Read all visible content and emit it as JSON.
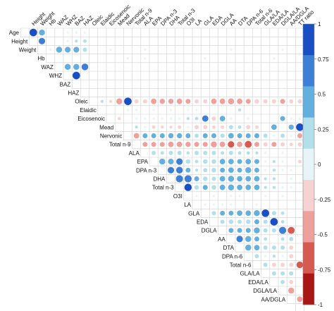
{
  "chart_data": {
    "type": "heatmap",
    "title": "",
    "variables": [
      "Age",
      "Height",
      "Weight",
      "Hb",
      "WAZ",
      "WHZ",
      "BAZ",
      "HAZ",
      "Oleic",
      "Elaidic",
      "Eicosenoic",
      "Mead",
      "Nervonic",
      "Total n-9",
      "ALA",
      "EPA",
      "DPA n-3",
      "DHA",
      "Total n-3",
      "O3I",
      "LA",
      "GLA",
      "EDA",
      "DGLA",
      "AA",
      "DTA",
      "DPA n-6",
      "Total n-6",
      "GLA/LA",
      "EDA/LA",
      "DGLA/LA",
      "AA/DGLA",
      "TT ratio"
    ],
    "row_labels": [
      "Age",
      "Height",
      "Weight",
      "Hb",
      "WAZ",
      "WHZ",
      "BAZ",
      "HAZ",
      "Oleic",
      "Elaidic",
      "Eicosenoic",
      "Mead",
      "Nervonic",
      "Total n-9",
      "ALA",
      "EPA",
      "DPA n-3",
      "DHA",
      "Total n-3",
      "O3I",
      "LA",
      "GLA",
      "EDA",
      "DGLA",
      "AA",
      "DTA",
      "DPA n-6",
      "Total n-6",
      "GLA/LA",
      "EDA/LA",
      "DGLA/LA",
      "AA/DGLA"
    ],
    "col_labels": [
      "Height",
      "Weight",
      "Hb",
      "WAZ",
      "WHZ",
      "BAZ",
      "HAZ",
      "Oleic",
      "Elaidic",
      "Eicosenoic",
      "Mead",
      "Nervonic",
      "Total n-9",
      "ALA",
      "EPA",
      "DPA n-3",
      "DHA",
      "Total n-3",
      "O3I",
      "LA",
      "GLA",
      "EDA",
      "DGLA",
      "AA",
      "DTA",
      "DPA n-6",
      "Total n-6",
      "GLA/LA",
      "EDA/LA",
      "DGLA/LA",
      "AA/DGLA",
      "TT ratio"
    ],
    "value_range": [
      -1,
      1
    ],
    "colorbar": {
      "ticks": [
        "1",
        "0.75",
        "0.5",
        "0.25",
        "0",
        "-0.25",
        "-0.5",
        "-0.75",
        "-1"
      ],
      "colors": [
        "#1a4fc4",
        "#3e7fd6",
        "#63b0de",
        "#b3dfeb",
        "#e8f5f8",
        "#f6d3d2",
        "#eea09b",
        "#d65a52",
        "#a91616"
      ]
    },
    "correlations": [
      [
        "Age",
        "Height",
        0.95
      ],
      [
        "Age",
        "Weight",
        0.6
      ],
      [
        "Age",
        "WHZ",
        0.1
      ],
      [
        "Age",
        "BAZ",
        0.1
      ],
      [
        "Age",
        "HAZ",
        0.1
      ],
      [
        "Height",
        "Weight",
        0.7
      ],
      [
        "Height",
        "WHZ",
        0.1
      ],
      [
        "Height",
        "BAZ",
        0.15
      ],
      [
        "Height",
        "HAZ",
        0.2
      ],
      [
        "Weight",
        "Hb",
        0.1
      ],
      [
        "Weight",
        "WAZ",
        0.6
      ],
      [
        "Weight",
        "WHZ",
        0.55
      ],
      [
        "Weight",
        "BAZ",
        0.55
      ],
      [
        "Weight",
        "HAZ",
        0.3
      ],
      [
        "Weight",
        "Eicosenoic",
        0.1
      ],
      [
        "Weight",
        "ALA",
        0.1
      ],
      [
        "Weight",
        "AA",
        0.1
      ],
      [
        "Weight",
        "DGLA/LA",
        0.1
      ],
      [
        "Hb",
        "Weight",
        0.1
      ],
      [
        "Hb",
        "Nervonic",
        0.1
      ],
      [
        "Hb",
        "ALA",
        0.1
      ],
      [
        "Hb",
        "GLA",
        0.1
      ],
      [
        "Hb",
        "EDA/LA",
        0.1
      ],
      [
        "WAZ",
        "WHZ",
        0.6
      ],
      [
        "WAZ",
        "BAZ",
        0.6
      ],
      [
        "WAZ",
        "HAZ",
        0.75
      ],
      [
        "WHZ",
        "BAZ",
        0.95
      ],
      [
        "Oleic",
        "Elaidic",
        0.15
      ],
      [
        "Oleic",
        "Eicosenoic",
        -0.15
      ],
      [
        "Oleic",
        "Mead",
        -0.6
      ],
      [
        "Oleic",
        "Nervonic",
        0.95
      ],
      [
        "Oleic",
        "Total n-9",
        -0.3
      ],
      [
        "Oleic",
        "ALA",
        -0.3
      ],
      [
        "Oleic",
        "EPA",
        -0.5
      ],
      [
        "Oleic",
        "DPA n-3",
        -0.45
      ],
      [
        "Oleic",
        "DHA",
        -0.45
      ],
      [
        "Oleic",
        "Total n-3",
        -0.5
      ],
      [
        "Oleic",
        "O3I",
        -0.4
      ],
      [
        "Oleic",
        "LA",
        -0.3
      ],
      [
        "Oleic",
        "GLA",
        -0.3
      ],
      [
        "Oleic",
        "EDA",
        -0.5
      ],
      [
        "Oleic",
        "DGLA",
        -0.5
      ],
      [
        "Oleic",
        "AA",
        -0.6
      ],
      [
        "Oleic",
        "DTA",
        -0.5
      ],
      [
        "Oleic",
        "DPA n-6",
        -0.4
      ],
      [
        "Oleic",
        "Total n-6",
        -0.35
      ],
      [
        "Oleic",
        "GLA/LA",
        -0.3
      ],
      [
        "Oleic",
        "EDA/LA",
        -0.3
      ],
      [
        "Oleic",
        "DGLA/LA",
        -0.4
      ],
      [
        "Oleic",
        "AA/DGLA",
        -0.3
      ],
      [
        "Oleic",
        "TT ratio",
        -0.3
      ],
      [
        "Elaidic",
        "Nervonic",
        0.1
      ],
      [
        "Elaidic",
        "Total n-9",
        0.1
      ],
      [
        "Elaidic",
        "EPA",
        0.1
      ],
      [
        "Elaidic",
        "DHA",
        0.1
      ],
      [
        "Elaidic",
        "O3I",
        0.1
      ],
      [
        "Elaidic",
        "LA",
        0.1
      ],
      [
        "Elaidic",
        "DTA",
        0.15
      ],
      [
        "Eicosenoic",
        "Mead",
        -0.15
      ],
      [
        "Eicosenoic",
        "Total n-9",
        0.1
      ],
      [
        "Eicosenoic",
        "ALA",
        0.1
      ],
      [
        "Eicosenoic",
        "EPA",
        0.1
      ],
      [
        "Eicosenoic",
        "DPA n-3",
        0.1
      ],
      [
        "Eicosenoic",
        "DHA",
        0.1
      ],
      [
        "Eicosenoic",
        "Total n-3",
        0.1
      ],
      [
        "Eicosenoic",
        "O3I",
        0.15
      ],
      [
        "Eicosenoic",
        "LA",
        0.2
      ],
      [
        "Eicosenoic",
        "GLA",
        0.65
      ],
      [
        "Eicosenoic",
        "EDA",
        -0.3
      ],
      [
        "Eicosenoic",
        "DGLA",
        0.5
      ],
      [
        "Eicosenoic",
        "AA",
        0.1
      ],
      [
        "Eicosenoic",
        "DPA n-6",
        0.1
      ],
      [
        "Eicosenoic",
        "DGLA/LA",
        0.4
      ],
      [
        "Eicosenoic",
        "AA/DGLA",
        0.1
      ],
      [
        "Eicosenoic",
        "TT ratio",
        0.1
      ],
      [
        "Mead",
        "Total n-9",
        0.15
      ],
      [
        "Mead",
        "ALA",
        0.1
      ],
      [
        "Mead",
        "EPA",
        -0.2
      ],
      [
        "Mead",
        "DPA n-3",
        -0.15
      ],
      [
        "Mead",
        "DHA",
        -0.15
      ],
      [
        "Mead",
        "Total n-3",
        -0.2
      ],
      [
        "Mead",
        "O3I",
        -0.1
      ],
      [
        "Mead",
        "LA",
        -0.3
      ],
      [
        "Mead",
        "GLA",
        -0.3
      ],
      [
        "Mead",
        "EDA",
        -0.2
      ],
      [
        "Mead",
        "DGLA",
        -0.2
      ],
      [
        "Mead",
        "AA",
        0.3
      ],
      [
        "Mead",
        "DTA",
        0.2
      ],
      [
        "Mead",
        "DPA n-6",
        -0.3
      ],
      [
        "Mead",
        "Total n-6",
        -0.2
      ],
      [
        "Mead",
        "EDA/LA",
        0.5
      ],
      [
        "Mead",
        "AA/DGLA",
        0.45
      ],
      [
        "Mead",
        "TT ratio",
        0.95
      ],
      [
        "Nervonic",
        "Total n-9",
        -0.5
      ],
      [
        "Nervonic",
        "ALA",
        0.4
      ],
      [
        "Nervonic",
        "EPA",
        0.4
      ],
      [
        "Nervonic",
        "DPA n-3",
        0.4
      ],
      [
        "Nervonic",
        "DHA",
        0.45
      ],
      [
        "Nervonic",
        "Total n-3",
        0.45
      ],
      [
        "Nervonic",
        "O3I",
        0.4
      ],
      [
        "Nervonic",
        "LA",
        0.3
      ],
      [
        "Nervonic",
        "GLA",
        0.4
      ],
      [
        "Nervonic",
        "EDA",
        0.4
      ],
      [
        "Nervonic",
        "DGLA",
        0.3
      ],
      [
        "Nervonic",
        "AA",
        0.5
      ],
      [
        "Nervonic",
        "DTA",
        0.4
      ],
      [
        "Nervonic",
        "DPA n-6",
        0.4
      ],
      [
        "Nervonic",
        "Total n-6",
        0.4
      ],
      [
        "Nervonic",
        "GLA/LA",
        0.3
      ],
      [
        "Nervonic",
        "EDA/LA",
        0.1
      ],
      [
        "Nervonic",
        "DGLA/LA",
        0.3
      ],
      [
        "Nervonic",
        "AA/DGLA",
        0.1
      ],
      [
        "Nervonic",
        "TT ratio",
        -0.4
      ],
      [
        "Total n-9",
        "ALA",
        -0.4
      ],
      [
        "Total n-9",
        "EPA",
        -0.4
      ],
      [
        "Total n-9",
        "DPA n-3",
        -0.4
      ],
      [
        "Total n-9",
        "DHA",
        -0.5
      ],
      [
        "Total n-9",
        "Total n-3",
        -0.5
      ],
      [
        "Total n-9",
        "O3I",
        -0.45
      ],
      [
        "Total n-9",
        "LA",
        -0.4
      ],
      [
        "Total n-9",
        "GLA",
        -0.4
      ],
      [
        "Total n-9",
        "EDA",
        -0.6
      ],
      [
        "Total n-9",
        "DGLA",
        -0.5
      ],
      [
        "Total n-9",
        "AA",
        -0.7
      ],
      [
        "Total n-9",
        "DTA",
        -0.5
      ],
      [
        "Total n-9",
        "DPA n-6",
        -0.8
      ],
      [
        "Total n-9",
        "Total n-6",
        -0.4
      ],
      [
        "Total n-9",
        "GLA/LA",
        -0.3
      ],
      [
        "Total n-9",
        "EDA/LA",
        -0.4
      ],
      [
        "Total n-9",
        "DGLA/LA",
        -0.3
      ],
      [
        "Total n-9",
        "AA/DGLA",
        -0.2
      ],
      [
        "Total n-9",
        "TT ratio",
        -0.3
      ],
      [
        "ALA",
        "EPA",
        0.3
      ],
      [
        "ALA",
        "DPA n-3",
        0.2
      ],
      [
        "ALA",
        "DHA",
        0.3
      ],
      [
        "ALA",
        "Total n-3",
        0.3
      ],
      [
        "ALA",
        "O3I",
        0.15
      ],
      [
        "ALA",
        "LA",
        0.3
      ],
      [
        "ALA",
        "GLA",
        0.3
      ],
      [
        "ALA",
        "EDA",
        0.3
      ],
      [
        "ALA",
        "DGLA",
        0.2
      ],
      [
        "ALA",
        "AA",
        0.3
      ],
      [
        "ALA",
        "DTA",
        0.2
      ],
      [
        "ALA",
        "DPA n-6",
        0.2
      ],
      [
        "ALA",
        "Total n-6",
        0.15
      ],
      [
        "ALA",
        "GLA/LA",
        0.1
      ],
      [
        "ALA",
        "DGLA/LA",
        0.1
      ],
      [
        "EPA",
        "DPA n-3",
        0.6
      ],
      [
        "EPA",
        "DHA",
        0.55
      ],
      [
        "EPA",
        "Total n-3",
        0.7
      ],
      [
        "EPA",
        "O3I",
        0.35
      ],
      [
        "EPA",
        "LA",
        0.2
      ],
      [
        "EPA",
        "GLA",
        0.35
      ],
      [
        "EPA",
        "EDA",
        0.35
      ],
      [
        "EPA",
        "DGLA",
        0.5
      ],
      [
        "EPA",
        "AA",
        0.5
      ],
      [
        "EPA",
        "DTA",
        0.4
      ],
      [
        "EPA",
        "DPA n-6",
        0.5
      ],
      [
        "EPA",
        "Total n-6",
        0.4
      ],
      [
        "EPA",
        "GLA/LA",
        0.1
      ],
      [
        "EPA",
        "EDA/LA",
        0.15
      ],
      [
        "EPA",
        "DGLA/LA",
        0.1
      ],
      [
        "EPA",
        "TT ratio",
        -0.2
      ],
      [
        "DPA n-3",
        "DHA",
        0.7
      ],
      [
        "DPA n-3",
        "Total n-3",
        0.75
      ],
      [
        "DPA n-3",
        "O3I",
        0.4
      ],
      [
        "DPA n-3",
        "LA",
        0.15
      ],
      [
        "DPA n-3",
        "GLA",
        0.3
      ],
      [
        "DPA n-3",
        "EDA",
        0.35
      ],
      [
        "DPA n-3",
        "DGLA",
        0.4
      ],
      [
        "DPA n-3",
        "AA",
        0.5
      ],
      [
        "DPA n-3",
        "DTA",
        0.4
      ],
      [
        "DPA n-3",
        "DPA n-6",
        0.6
      ],
      [
        "DPA n-3",
        "Total n-6",
        0.4
      ],
      [
        "DPA n-3",
        "GLA/LA",
        0.1
      ],
      [
        "DPA n-3",
        "EDA/LA",
        0.15
      ],
      [
        "DPA n-3",
        "DGLA/LA",
        0.1
      ],
      [
        "DPA n-3",
        "AA/DGLA",
        0.1
      ],
      [
        "DHA",
        "Total n-3",
        0.85
      ],
      [
        "DHA",
        "O3I",
        0.85
      ],
      [
        "DHA",
        "LA",
        0.4
      ],
      [
        "DHA",
        "GLA",
        0.35
      ],
      [
        "DHA",
        "EDA",
        0.3
      ],
      [
        "DHA",
        "DGLA",
        0.5
      ],
      [
        "DHA",
        "AA",
        0.6
      ],
      [
        "DHA",
        "DTA",
        0.5
      ],
      [
        "DHA",
        "DPA n-6",
        0.5
      ],
      [
        "DHA",
        "Total n-6",
        0.5
      ],
      [
        "DHA",
        "GLA/LA",
        0.15
      ],
      [
        "DHA",
        "EDA/LA",
        0.15
      ],
      [
        "DHA",
        "AA/DGLA",
        0.1
      ],
      [
        "Total n-3",
        "O3I",
        0.9
      ],
      [
        "Total n-3",
        "LA",
        0.35
      ],
      [
        "Total n-3",
        "GLA",
        0.4
      ],
      [
        "Total n-3",
        "EDA",
        0.35
      ],
      [
        "Total n-3",
        "DGLA",
        0.5
      ],
      [
        "Total n-3",
        "AA",
        0.6
      ],
      [
        "Total n-3",
        "DTA",
        0.5
      ],
      [
        "Total n-3",
        "DPA n-6",
        0.5
      ],
      [
        "Total n-3",
        "Total n-6",
        0.5
      ],
      [
        "Total n-3",
        "GLA/LA",
        0.15
      ],
      [
        "Total n-3",
        "EDA/LA",
        0.15
      ],
      [
        "Total n-3",
        "DGLA/LA",
        0.1
      ],
      [
        "Total n-3",
        "AA/DGLA",
        0.1
      ],
      [
        "O3I",
        "LA",
        0.1
      ],
      [
        "O3I",
        "EDA",
        0.1
      ],
      [
        "O3I",
        "AA",
        0.1
      ],
      [
        "O3I",
        "DTA",
        0.1
      ],
      [
        "O3I",
        "GLA/LA",
        0.1
      ],
      [
        "O3I",
        "DGLA/LA",
        0.1
      ],
      [
        "LA",
        "GLA",
        0.1
      ],
      [
        "LA",
        "EDA",
        0.1
      ],
      [
        "LA",
        "DGLA",
        0.1
      ],
      [
        "LA",
        "AA",
        0.1
      ],
      [
        "LA",
        "Total n-6",
        0.1
      ],
      [
        "GLA",
        "EDA",
        0.3
      ],
      [
        "GLA",
        "DGLA",
        0.4
      ],
      [
        "GLA",
        "AA",
        0.4
      ],
      [
        "GLA",
        "DTA",
        0.5
      ],
      [
        "GLA",
        "DPA n-6",
        0.5
      ],
      [
        "GLA",
        "Total n-6",
        0.6
      ],
      [
        "GLA",
        "GLA/LA",
        0.95
      ],
      [
        "GLA",
        "EDA/LA",
        0.3
      ],
      [
        "GLA",
        "DGLA/LA",
        0.2
      ],
      [
        "EDA",
        "DGLA",
        0.3
      ],
      [
        "EDA",
        "AA",
        0.35
      ],
      [
        "EDA",
        "DTA",
        0.3
      ],
      [
        "EDA",
        "DPA n-6",
        0.35
      ],
      [
        "EDA",
        "Total n-6",
        0.4
      ],
      [
        "EDA",
        "GLA/LA",
        0.3
      ],
      [
        "EDA",
        "EDA/LA",
        0.95
      ],
      [
        "EDA",
        "DGLA/LA",
        0.2
      ],
      [
        "DGLA",
        "AA",
        0.4
      ],
      [
        "DGLA",
        "DTA",
        0.4
      ],
      [
        "DGLA",
        "DPA n-6",
        0.4
      ],
      [
        "DGLA",
        "Total n-6",
        0.6
      ],
      [
        "DGLA",
        "GLA/LA",
        0.3
      ],
      [
        "DGLA",
        "EDA/LA",
        0.3
      ],
      [
        "DGLA",
        "DGLA/LA",
        0.85
      ],
      [
        "DGLA",
        "AA/DGLA",
        -0.8
      ],
      [
        "AA",
        "DTA",
        0.7
      ],
      [
        "AA",
        "DPA n-6",
        0.6
      ],
      [
        "AA",
        "Total n-6",
        0.4
      ],
      [
        "AA",
        "GLA/LA",
        0.2
      ],
      [
        "AA",
        "DGLA/LA",
        0.2
      ],
      [
        "AA",
        "AA/DGLA",
        0.3
      ],
      [
        "DTA",
        "DPA n-6",
        0.6
      ],
      [
        "DTA",
        "Total n-6",
        0.5
      ],
      [
        "DTA",
        "GLA/LA",
        0.3
      ],
      [
        "DTA",
        "EDA/LA",
        0.3
      ],
      [
        "DTA",
        "DGLA/LA",
        0.3
      ],
      [
        "DTA",
        "AA/DGLA",
        -0.3
      ],
      [
        "DPA n-6",
        "Total n-6",
        0.3
      ],
      [
        "DPA n-6",
        "GLA/LA",
        0.1
      ],
      [
        "DPA n-6",
        "EDA/LA",
        0.15
      ],
      [
        "DPA n-6",
        "DGLA/LA",
        0.1
      ],
      [
        "DPA n-6",
        "AA/DGLA",
        -0.3
      ],
      [
        "Total n-6",
        "GLA/LA",
        0.3
      ],
      [
        "Total n-6",
        "EDA/LA",
        -0.3
      ],
      [
        "Total n-6",
        "DGLA/LA",
        -0.3
      ],
      [
        "Total n-6",
        "AA/DGLA",
        -0.3
      ],
      [
        "Total n-6",
        "TT ratio",
        -0.75
      ],
      [
        "GLA/LA",
        "EDA/LA",
        0.3
      ],
      [
        "GLA/LA",
        "DGLA/LA",
        0.3
      ],
      [
        "GLA/LA",
        "AA/DGLA",
        0.3
      ],
      [
        "EDA/LA",
        "DGLA/LA",
        0.3
      ],
      [
        "EDA/LA",
        "AA/DGLA",
        -0.3
      ],
      [
        "DGLA/LA",
        "AA/DGLA",
        -0.6
      ],
      [
        "AA/DGLA",
        "TT ratio",
        -0.5
      ]
    ]
  }
}
